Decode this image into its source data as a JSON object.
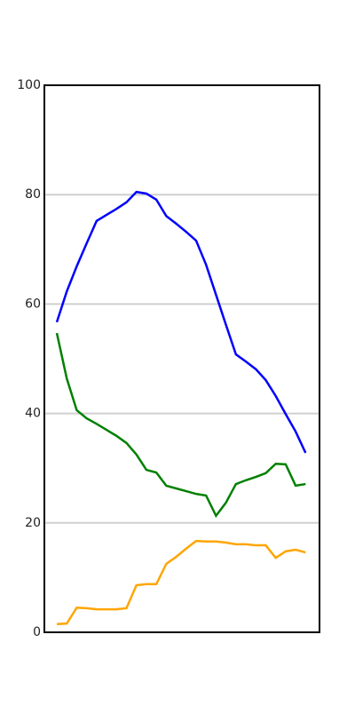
{
  "chart_data": {
    "type": "line",
    "x": [
      0,
      1,
      2,
      3,
      4,
      5,
      6,
      7,
      8,
      9,
      10,
      11,
      12,
      13,
      14,
      15,
      16,
      17,
      18,
      19,
      20,
      21,
      22,
      23,
      24,
      25
    ],
    "xlim": [
      -1.25,
      26.4
    ],
    "ylim": [
      0,
      100
    ],
    "yticks": [
      0,
      20,
      40,
      60,
      80,
      100
    ],
    "grid": true,
    "series": [
      {
        "color": "#0000ff",
        "values": [
          56.7,
          62.3,
          66.9,
          71.1,
          75.2,
          76.3,
          77.4,
          78.6,
          80.5,
          80.2,
          79.1,
          76.1,
          74.7,
          73.2,
          71.6,
          67.2,
          61.7,
          56.2,
          50.8,
          49.5,
          48.1,
          46.1,
          43.2,
          39.9,
          36.7,
          32.8
        ]
      },
      {
        "color": "#008000",
        "values": [
          54.7,
          46.4,
          40.6,
          39.1,
          38.1,
          37.0,
          35.9,
          34.6,
          32.5,
          29.7,
          29.2,
          26.8,
          26.3,
          25.8,
          25.3,
          25.0,
          21.3,
          23.7,
          27.1,
          27.8,
          28.4,
          29.1,
          30.8,
          30.7,
          26.8,
          27.1
        ]
      },
      {
        "color": "#ffa500",
        "values": [
          1.5,
          1.6,
          4.5,
          4.4,
          4.2,
          4.2,
          4.2,
          4.4,
          8.6,
          8.8,
          8.8,
          12.5,
          13.8,
          15.3,
          16.7,
          16.6,
          16.6,
          16.4,
          16.1,
          16.1,
          15.9,
          15.9,
          13.6,
          14.8,
          15.1,
          14.6
        ]
      }
    ]
  }
}
